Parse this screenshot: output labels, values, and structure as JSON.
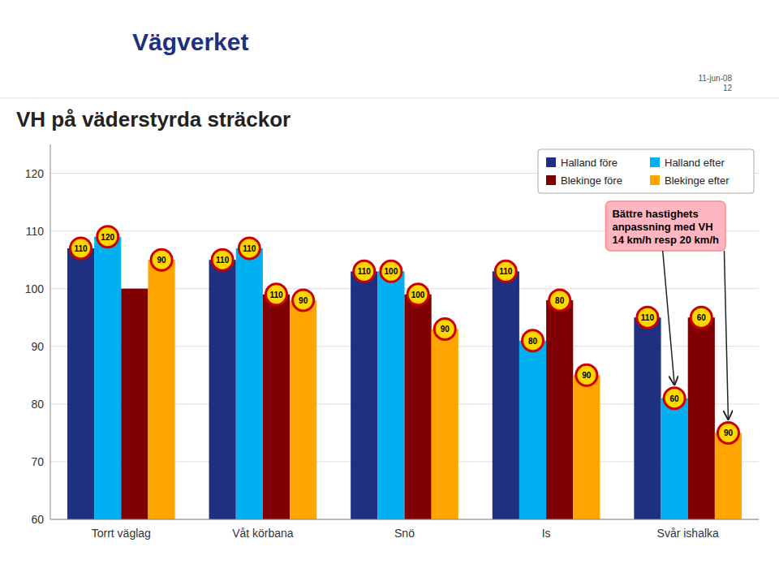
{
  "chart_data": {
    "type": "bar",
    "title": "VH på väderstyrda sträckor",
    "logo": "Vägverket",
    "date_text": "11-jun-08\n12",
    "annotation": "Bättre hastighets\nanpassning med VH\n14 km/h resp 20 km/h",
    "categories": [
      "Torrt väglag",
      "Våt körbana",
      "Snö",
      "Is",
      "Svår ishalka"
    ],
    "series": [
      {
        "name": "Halland före",
        "color": "#1F3080",
        "values": [
          107,
          105,
          103,
          103,
          95
        ],
        "speed_limits": [
          110,
          110,
          110,
          110,
          110
        ]
      },
      {
        "name": "Halland efter",
        "color": "#00B0F0",
        "values": [
          109,
          107,
          103,
          91,
          81
        ],
        "speed_limits": [
          120,
          110,
          100,
          80,
          60
        ]
      },
      {
        "name": "Blekinge före",
        "color": "#7F0000",
        "values": [
          100,
          99,
          99,
          98,
          95
        ],
        "speed_limits": [
          null,
          110,
          100,
          80,
          60
        ]
      },
      {
        "name": "Blekinge efter",
        "color": "#FFA500",
        "values": [
          105,
          98,
          93,
          85,
          75
        ],
        "speed_limits": [
          90,
          90,
          90,
          90,
          90
        ]
      }
    ],
    "ylim": [
      60,
      125
    ],
    "yticks": [
      60,
      70,
      80,
      90,
      100,
      110,
      120
    ],
    "grid": true,
    "legend": "upper right"
  }
}
